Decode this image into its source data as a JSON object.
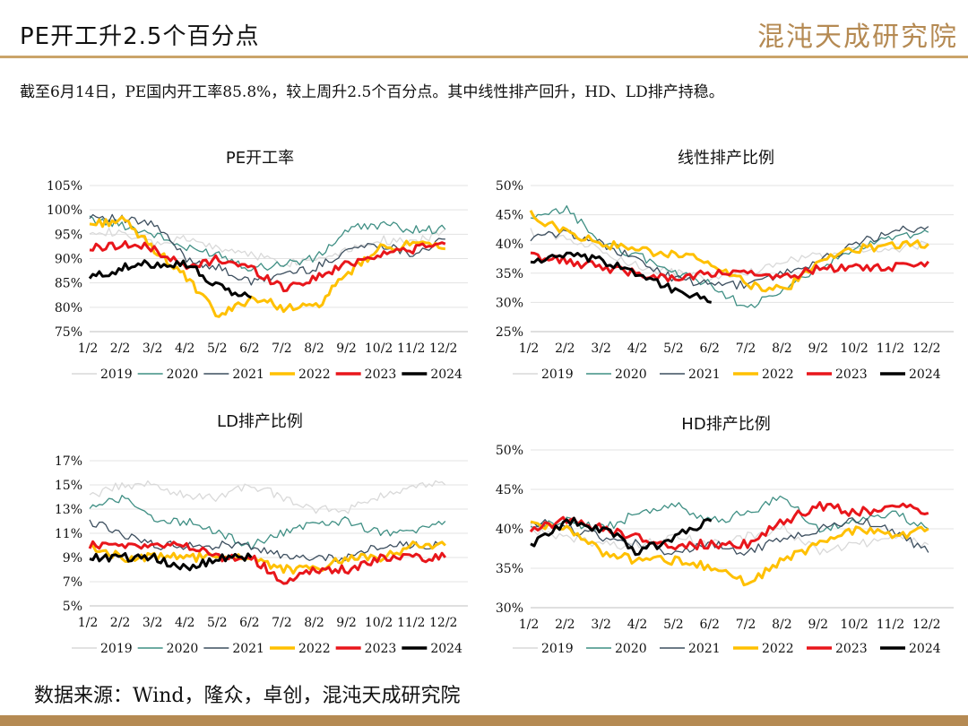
{
  "header": {
    "title": "PE开工升2.5个百分点",
    "logo_text": "混沌天成研究院",
    "summary": "截至6月14日，PE国内开工率85.8%，较上周升2.5个百分点。其中线性排产回升，HD、LD排产持稳。",
    "source": "数据来源：Wind，隆众，卓创，混沌天成研究院"
  },
  "colors": {
    "2019": "#d9d9d9",
    "2020": "#3f8f84",
    "2021": "#3c4e5e",
    "2022": "#ffc000",
    "2023": "#e8161b",
    "2024": "#000000",
    "accent": "#b58a53"
  },
  "chart_data": [
    {
      "type": "line",
      "title": "PE开工率",
      "x_ticks": [
        "1/2",
        "2/2",
        "3/2",
        "4/2",
        "5/2",
        "6/2",
        "7/2",
        "8/2",
        "9/2",
        "10/2",
        "11/2",
        "12/2"
      ],
      "y_ticks": [
        "75%",
        "80%",
        "85%",
        "90%",
        "95%",
        "100%",
        "105%"
      ],
      "ylim": [
        75,
        105
      ],
      "legend": [
        "2019",
        "2020",
        "2021",
        "2022",
        "2023",
        "2024"
      ],
      "legend_position": "bottom",
      "series": [
        {
          "name": "2019",
          "values": [
            96,
            95,
            93,
            94,
            92,
            91,
            89,
            90,
            92,
            94,
            93,
            96
          ]
        },
        {
          "name": "2020",
          "values": [
            98,
            97,
            95,
            92,
            91,
            88,
            89,
            90,
            96,
            97,
            96,
            96
          ]
        },
        {
          "name": "2021",
          "values": [
            99,
            98,
            97,
            90,
            88,
            85,
            87,
            88,
            92,
            93,
            91,
            94
          ]
        },
        {
          "name": "2022",
          "values": [
            97,
            98,
            92,
            86,
            78,
            82,
            80,
            80,
            87,
            92,
            93,
            92
          ]
        },
        {
          "name": "2023",
          "values": [
            92,
            93,
            92,
            88,
            90,
            88,
            84,
            86,
            89,
            91,
            92,
            93
          ]
        },
        {
          "name": "2024",
          "values": [
            86,
            88,
            89,
            89,
            84,
            82
          ]
        }
      ]
    },
    {
      "type": "line",
      "title": "线性排产比例",
      "x_ticks": [
        "1/2",
        "2/2",
        "3/2",
        "4/2",
        "5/2",
        "6/2",
        "7/2",
        "8/2",
        "9/2",
        "10/2",
        "11/2",
        "12/2"
      ],
      "y_ticks": [
        "25%",
        "30%",
        "35%",
        "40%",
        "45%",
        "50%"
      ],
      "ylim": [
        25,
        50
      ],
      "legend": [
        "2019",
        "2020",
        "2021",
        "2022",
        "2023",
        "2024"
      ],
      "legend_position": "bottom",
      "series": [
        {
          "name": "2019",
          "values": [
            42,
            41,
            39,
            36,
            35,
            34,
            35,
            37,
            38,
            39,
            39,
            40
          ]
        },
        {
          "name": "2020",
          "values": [
            44,
            46,
            40,
            38,
            35,
            33,
            29,
            32,
            36,
            39,
            41,
            42
          ]
        },
        {
          "name": "2021",
          "values": [
            41,
            42,
            40,
            37,
            34,
            33,
            33,
            35,
            37,
            40,
            42,
            43
          ]
        },
        {
          "name": "2022",
          "values": [
            45,
            42,
            40,
            39,
            38,
            37,
            33,
            32,
            37,
            39,
            40,
            40
          ]
        },
        {
          "name": "2023",
          "values": [
            38,
            37,
            36,
            35,
            34,
            35,
            35,
            34,
            36,
            36,
            36,
            37
          ]
        },
        {
          "name": "2024",
          "values": [
            37,
            38,
            37,
            35,
            32,
            30
          ]
        }
      ]
    },
    {
      "type": "line",
      "title": "LD排产比例",
      "x_ticks": [
        "1/2",
        "2/2",
        "3/2",
        "4/2",
        "5/2",
        "6/2",
        "7/2",
        "8/2",
        "9/2",
        "10/2",
        "11/2",
        "12/2"
      ],
      "y_ticks": [
        "5%",
        "7%",
        "9%",
        "11%",
        "13%",
        "15%",
        "17%"
      ],
      "ylim": [
        5,
        17
      ],
      "legend": [
        "2019",
        "2020",
        "2021",
        "2022",
        "2023",
        "2024"
      ],
      "legend_position": "bottom",
      "series": [
        {
          "name": "2019",
          "values": [
            14,
            15,
            15,
            14,
            14,
            15,
            14,
            13,
            13,
            14,
            15,
            15
          ]
        },
        {
          "name": "2020",
          "values": [
            13,
            14,
            12,
            12,
            11,
            10,
            11,
            12,
            12,
            11,
            11,
            12
          ]
        },
        {
          "name": "2021",
          "values": [
            12,
            11,
            10,
            10,
            10,
            10,
            9,
            9,
            9,
            10,
            10,
            10
          ]
        },
        {
          "name": "2022",
          "values": [
            10,
            9,
            9,
            9,
            9,
            9,
            8,
            8,
            9,
            9,
            10,
            10
          ]
        },
        {
          "name": "2023",
          "values": [
            10,
            10,
            10,
            10,
            9,
            9,
            7,
            8,
            8,
            9,
            9,
            9
          ]
        },
        {
          "name": "2024",
          "values": [
            9,
            9,
            9,
            8,
            9,
            9
          ]
        }
      ]
    },
    {
      "type": "line",
      "title": "HD排产比例",
      "x_ticks": [
        "1/2",
        "2/2",
        "3/2",
        "4/2",
        "5/2",
        "6/2",
        "7/2",
        "8/2",
        "9/2",
        "10/2",
        "11/2",
        "12/2"
      ],
      "y_ticks": [
        "30%",
        "35%",
        "40%",
        "45%",
        "50%"
      ],
      "ylim": [
        30,
        50
      ],
      "legend": [
        "2019",
        "2020",
        "2021",
        "2022",
        "2023",
        "2024"
      ],
      "legend_position": "bottom",
      "series": [
        {
          "name": "2019",
          "values": [
            40,
            39,
            38,
            38,
            39,
            38,
            39,
            40,
            37,
            38,
            39,
            38
          ]
        },
        {
          "name": "2020",
          "values": [
            40,
            41,
            40,
            42,
            43,
            41,
            42,
            44,
            40,
            41,
            42,
            40
          ]
        },
        {
          "name": "2021",
          "values": [
            41,
            40,
            39,
            38,
            37,
            38,
            37,
            39,
            40,
            41,
            40,
            37
          ]
        },
        {
          "name": "2022",
          "values": [
            41,
            40,
            37,
            36,
            36,
            35,
            33,
            36,
            38,
            40,
            39,
            40
          ]
        },
        {
          "name": "2023",
          "values": [
            40,
            41,
            40,
            39,
            38,
            38,
            38,
            41,
            43,
            42,
            43,
            42
          ]
        },
        {
          "name": "2024",
          "values": [
            38,
            41,
            40,
            37,
            39,
            41
          ]
        }
      ]
    }
  ]
}
